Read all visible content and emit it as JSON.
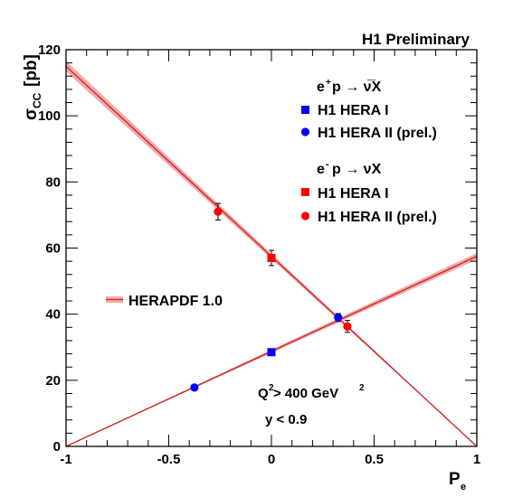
{
  "chart_data": {
    "type": "scatter",
    "title": "H1 Preliminary",
    "xlabel": "P",
    "xlabel_sub": "e",
    "ylabel": "σ",
    "ylabel_sub": "CC",
    "ylabel_unit": "[pb]",
    "xlim": [
      -1,
      1
    ],
    "ylim": [
      0,
      120
    ],
    "x_ticks": [
      -1,
      -0.5,
      0,
      0.5,
      1
    ],
    "x_tick_labels": [
      "-1",
      "-0.5",
      "0",
      "0.5",
      "1"
    ],
    "y_ticks": [
      0,
      20,
      40,
      60,
      80,
      100,
      120
    ],
    "y_tick_labels": [
      "0",
      "20",
      "40",
      "60",
      "80",
      "100",
      "120"
    ],
    "grid": false,
    "legend": {
      "positron_header": "e",
      "positron_header_sup": "+",
      "positron_header_rest": "p → ν̅X",
      "electron_header": "e",
      "electron_header_sup": "-",
      "electron_header_rest": "p → νX",
      "entries": [
        {
          "label": "H1 HERA I",
          "marker": "square",
          "color": "#0000ff"
        },
        {
          "label": "H1 HERA II (prel.)",
          "marker": "circle",
          "color": "#0000ff"
        },
        {
          "label": "H1 HERA I",
          "marker": "square",
          "color": "#ff0000"
        },
        {
          "label": "H1 HERA II (prel.)",
          "marker": "circle",
          "color": "#ff0000"
        }
      ],
      "band_label": "HERAPDF 1.0"
    },
    "annotations": {
      "q2_text": "Q",
      "q2_sup": "2",
      "q2_rest": " > 400 GeV",
      "q2_unit_sup": "2",
      "y_cut": "y < 0.9"
    },
    "series": [
      {
        "name": "H1 HERA I",
        "process": "e+p",
        "marker": "square",
        "color": "#0000ff",
        "points": [
          {
            "x": 0,
            "y": 28.5,
            "err": 0.8
          }
        ]
      },
      {
        "name": "H1 HERA II (prel.)",
        "process": "e+p",
        "marker": "circle",
        "color": "#0000ff",
        "points": [
          {
            "x": -0.375,
            "y": 17.8,
            "err": 0.6
          },
          {
            "x": 0.325,
            "y": 39.0,
            "err": 1.2
          }
        ]
      },
      {
        "name": "H1 HERA I",
        "process": "e-p",
        "marker": "square",
        "color": "#ff0000",
        "points": [
          {
            "x": 0,
            "y": 57.0,
            "err": 2.3
          }
        ]
      },
      {
        "name": "H1 HERA II (prel.)",
        "process": "e-p",
        "marker": "circle",
        "color": "#ff0000",
        "points": [
          {
            "x": -0.26,
            "y": 71.0,
            "err": 2.5
          },
          {
            "x": 0.37,
            "y": 36.3,
            "err": 1.8
          }
        ]
      }
    ],
    "theory_lines": [
      {
        "name": "HERAPDF 1.0 e+p",
        "x": [
          -1,
          1
        ],
        "y": [
          0,
          57.5
        ],
        "band": [
          0,
          1.0
        ],
        "color": "#cc2222"
      },
      {
        "name": "HERAPDF 1.0 e-p",
        "x": [
          -1,
          1
        ],
        "y": [
          115,
          0
        ],
        "band": [
          1.6,
          0
        ],
        "color": "#cc2222"
      }
    ]
  }
}
